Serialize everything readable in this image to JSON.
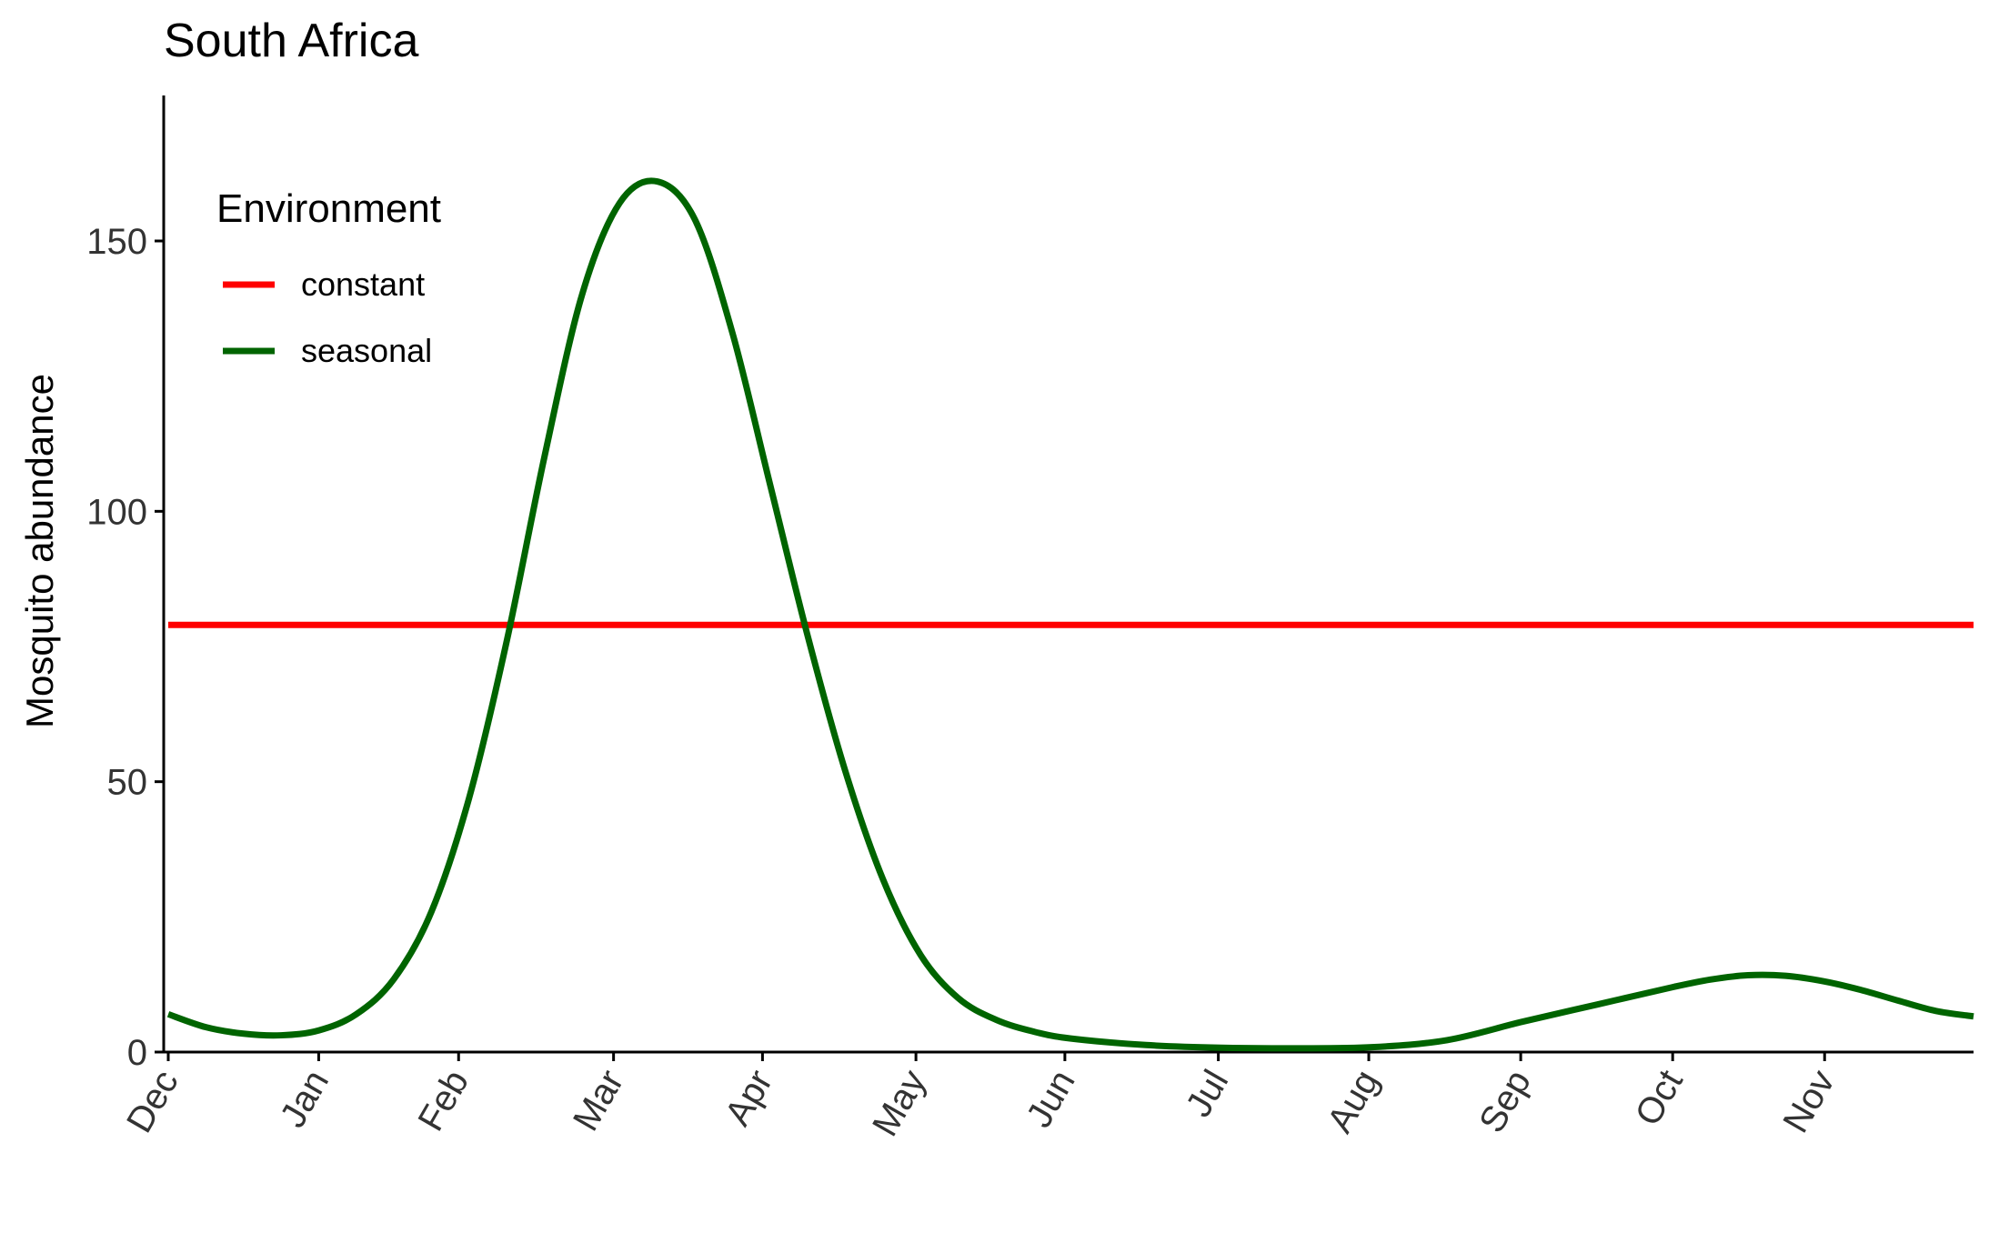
{
  "chart_data": {
    "type": "line",
    "title": "South Africa",
    "xlabel": "",
    "ylabel": "Mosquito abundance",
    "x_ticks": [
      "Dec",
      "Jan",
      "Feb",
      "Mar",
      "Apr",
      "May",
      "Jun",
      "Jul",
      "Aug",
      "Sep",
      "Oct",
      "Nov"
    ],
    "y_ticks": [
      0,
      50,
      100,
      150
    ],
    "ylim": [
      0,
      175
    ],
    "grid": false,
    "legend": {
      "title": "Environment",
      "position": "top-left"
    },
    "series": [
      {
        "name": "constant",
        "color": "#ff0000",
        "x": [
          0,
          12
        ],
        "y": [
          79,
          79
        ]
      },
      {
        "name": "seasonal",
        "color": "#006400",
        "x": [
          0,
          0.25,
          0.5,
          0.75,
          1.0,
          1.25,
          1.5,
          1.75,
          2.0,
          2.25,
          2.5,
          2.75,
          3.0,
          3.25,
          3.5,
          3.75,
          4.0,
          4.25,
          4.5,
          4.75,
          5.0,
          5.25,
          5.5,
          5.75,
          6.0,
          6.5,
          7.0,
          7.5,
          8.0,
          8.5,
          9.0,
          9.5,
          10.0,
          10.25,
          10.5,
          10.75,
          11.0,
          11.25,
          11.5,
          11.75,
          12.0
        ],
        "y": [
          7,
          4.6,
          3.4,
          3.1,
          4,
          7,
          13.5,
          26,
          47,
          76,
          110,
          140,
          157,
          161,
          154,
          133,
          105,
          77,
          52,
          32,
          18,
          10,
          6,
          3.8,
          2.5,
          1.3,
          0.8,
          0.7,
          0.9,
          2.2,
          5.6,
          8.8,
          12,
          13.4,
          14.2,
          14.1,
          13.1,
          11.5,
          9.5,
          7.6,
          6.6
        ]
      }
    ]
  }
}
